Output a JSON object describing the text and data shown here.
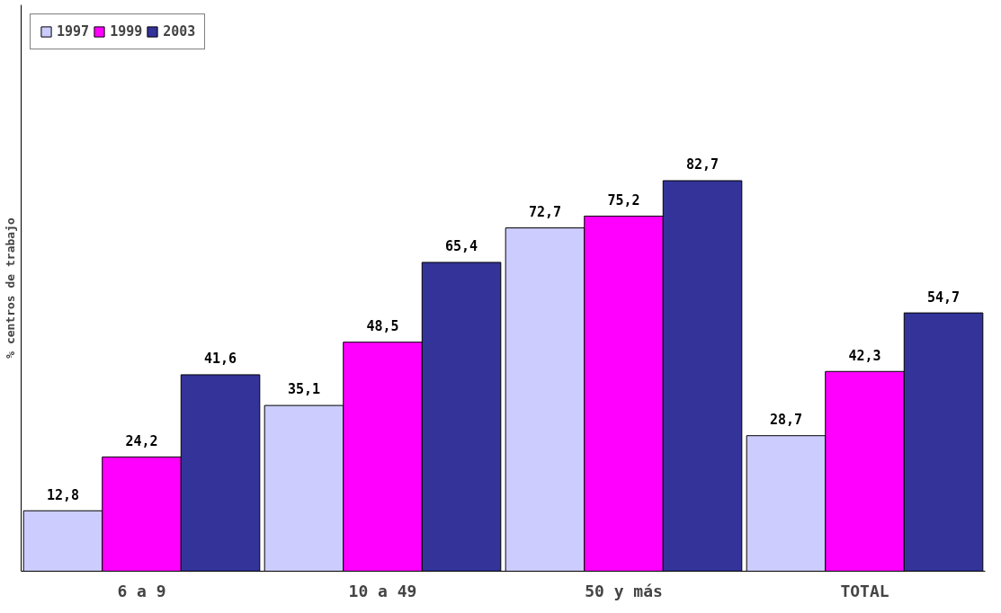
{
  "chart_data": {
    "type": "bar",
    "ylabel": "% centros de trabajo",
    "categories": [
      "6 a 9",
      "10 a 49",
      "50 y más",
      "TOTAL"
    ],
    "series": [
      {
        "name": "1997",
        "color": "#ccccff",
        "values": [
          12.8,
          35.1,
          72.7,
          28.7
        ],
        "value_labels": [
          "12,8",
          "35,1",
          "72,7",
          "28,7"
        ]
      },
      {
        "name": "1999",
        "color": "#ff00ff",
        "values": [
          24.2,
          48.5,
          75.2,
          42.3
        ],
        "value_labels": [
          "24,2",
          "48,5",
          "75,2",
          "42,3"
        ]
      },
      {
        "name": "2003",
        "color": "#333399",
        "values": [
          41.6,
          65.4,
          82.7,
          54.7
        ],
        "value_labels": [
          "41,6",
          "65,4",
          "82,7",
          "54,7"
        ]
      }
    ],
    "legend": "top left",
    "grid": false
  }
}
